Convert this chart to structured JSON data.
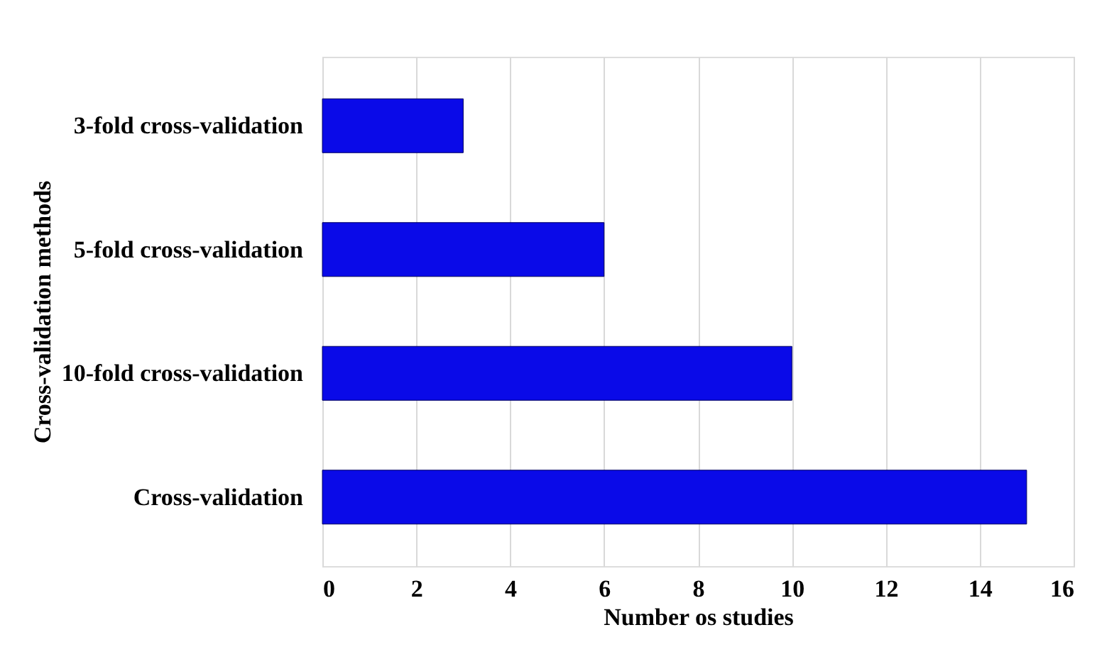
{
  "chart_data": {
    "type": "bar",
    "orientation": "horizontal",
    "xlabel": "Number os studies",
    "ylabel": "Cross-validation methods",
    "categories": [
      "3-fold cross-validation",
      "5-fold cross-validation",
      "10-fold cross-validation",
      "Cross-validation"
    ],
    "values": [
      3,
      6,
      10,
      15
    ],
    "color": "#0a0ae8",
    "xlim": [
      0,
      16
    ],
    "xticks": [
      0,
      2,
      4,
      6,
      8,
      10,
      12,
      14,
      16
    ],
    "grid": "x"
  }
}
